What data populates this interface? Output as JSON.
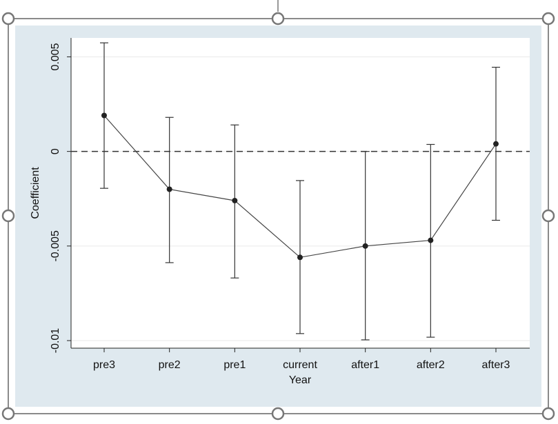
{
  "chart_data": {
    "type": "line",
    "x_label": "Year",
    "y_label": "Coefficient",
    "categories": [
      "pre3",
      "pre2",
      "pre1",
      "current",
      "after1",
      "after2",
      "after3"
    ],
    "series": [
      {
        "color": "#222222",
        "values": [
          0.0019,
          -0.002,
          -0.0026,
          -0.0056,
          -0.005,
          -0.0047,
          0.0004
        ],
        "ci_low": [
          -0.00195,
          -0.00588,
          -0.00669,
          -0.00963,
          -0.00996,
          -0.00982,
          -0.00364
        ],
        "ci_high": [
          0.00574,
          0.0018,
          0.0014,
          -0.00154,
          0.0,
          0.00037,
          0.00445
        ]
      }
    ],
    "ylim": [
      -0.0104,
      0.006
    ],
    "yticks": [
      0.005,
      0,
      -0.005,
      -0.01
    ],
    "grid": true,
    "hline": 0
  }
}
